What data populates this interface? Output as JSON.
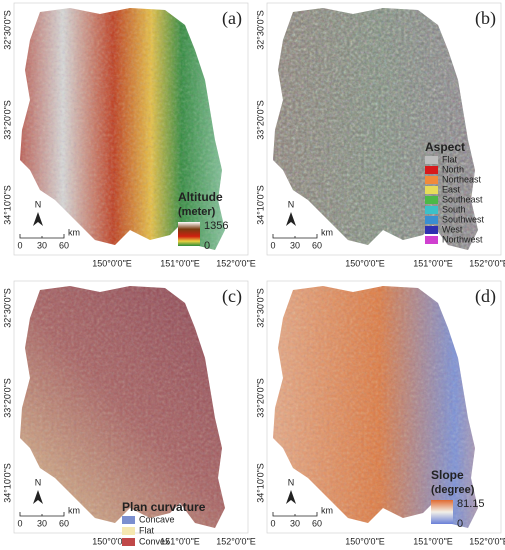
{
  "panels": [
    {
      "label": "(a)",
      "lat_labels": [
        "32°30'0\"S",
        "33°20'0\"S",
        "34°10'0\"S"
      ],
      "lon_labels": [
        "150°0'0\"E",
        "151°0'0\"E",
        "152°0'0\"E"
      ],
      "north": "N",
      "scale": {
        "ticks": [
          0,
          30,
          60
        ],
        "unit": "km"
      },
      "legend": {
        "title": "Altitude",
        "unit": "(meter)",
        "max": 1356,
        "min": 0
      }
    },
    {
      "label": "(b)",
      "lat_labels": [
        "32°30'0\"S",
        "33°20'0\"S",
        "34°10'0\"S"
      ],
      "lon_labels": [
        "150°0'0\"E",
        "151°0'0\"E",
        "152°0'0\"E"
      ],
      "north": "N",
      "scale": {
        "ticks": [
          0,
          30,
          60
        ],
        "unit": "km"
      },
      "legend": {
        "title": "Aspect",
        "entries": [
          {
            "name": "Flat",
            "color": "#bdbdbd"
          },
          {
            "name": "North",
            "color": "#d7191c"
          },
          {
            "name": "Northeast",
            "color": "#f08a3c"
          },
          {
            "name": "East",
            "color": "#e6dc5a"
          },
          {
            "name": "Southeast",
            "color": "#4cb848"
          },
          {
            "name": "South",
            "color": "#3cc0c8"
          },
          {
            "name": "Southwest",
            "color": "#3a8fd0"
          },
          {
            "name": "West",
            "color": "#3030b0"
          },
          {
            "name": "Northwest",
            "color": "#d040d0"
          }
        ]
      }
    },
    {
      "label": "(c)",
      "lat_labels": [
        "32°30'0\"S",
        "33°20'0\"S",
        "34°10'0\"S"
      ],
      "lon_labels": [
        "150°0'0\"E",
        "151°0'0\"E",
        "152°0'0\"E"
      ],
      "north": "N",
      "scale": {
        "ticks": [
          0,
          30,
          60
        ],
        "unit": "km"
      },
      "legend": {
        "title": "Plan curvature",
        "entries": [
          {
            "name": "Concave",
            "color": "#7b8fd0"
          },
          {
            "name": "Flat",
            "color": "#f5e8b0"
          },
          {
            "name": "Convex",
            "color": "#c04848"
          }
        ]
      }
    },
    {
      "label": "(d)",
      "lat_labels": [
        "32°30'0\"S",
        "33°20'0\"S",
        "34°10'0\"S"
      ],
      "lon_labels": [
        "150°0'0\"E",
        "151°0'0\"E",
        "152°0'0\"E"
      ],
      "north": "N",
      "scale": {
        "ticks": [
          0,
          30,
          60
        ],
        "unit": "km"
      },
      "legend": {
        "title": "Slope",
        "unit": "(degree)",
        "max": 81.15,
        "min": 0
      }
    }
  ]
}
